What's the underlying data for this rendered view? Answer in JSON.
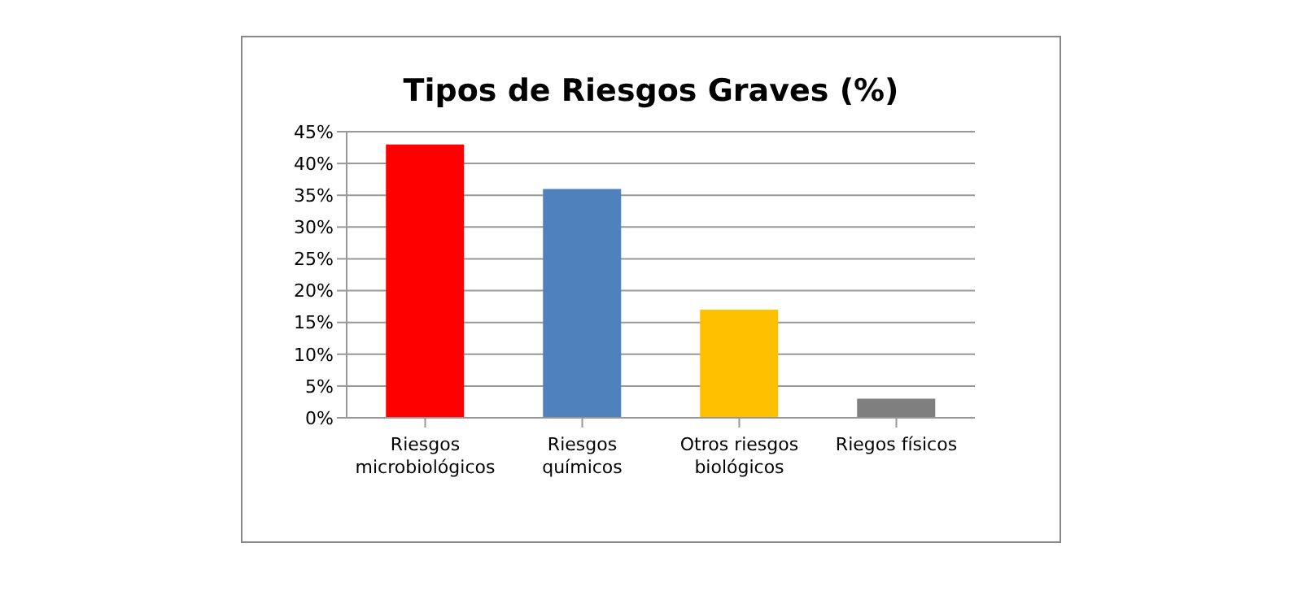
{
  "chart_data": {
    "type": "bar",
    "title": "Tipos de Riesgos Graves (%)",
    "categories": [
      "Riesgos microbiológicos",
      "Riesgos químicos",
      "Otros riesgos biológicos",
      "Riegos físicos"
    ],
    "values": [
      43,
      36,
      17,
      3
    ],
    "colors": [
      "#ff0000",
      "#4f81bd",
      "#ffc000",
      "#7f7f7f"
    ],
    "ylim": [
      0,
      45
    ],
    "yticks": [
      {
        "value": 0,
        "label": "0%"
      },
      {
        "value": 5,
        "label": "5%"
      },
      {
        "value": 10,
        "label": "10%"
      },
      {
        "value": 15,
        "label": "15%"
      },
      {
        "value": 20,
        "label": "20%"
      },
      {
        "value": 25,
        "label": "25%"
      },
      {
        "value": 30,
        "label": "30%"
      },
      {
        "value": 35,
        "label": "35%"
      },
      {
        "value": 40,
        "label": "40%"
      },
      {
        "value": 45,
        "label": "45%"
      }
    ],
    "grid": "y"
  }
}
